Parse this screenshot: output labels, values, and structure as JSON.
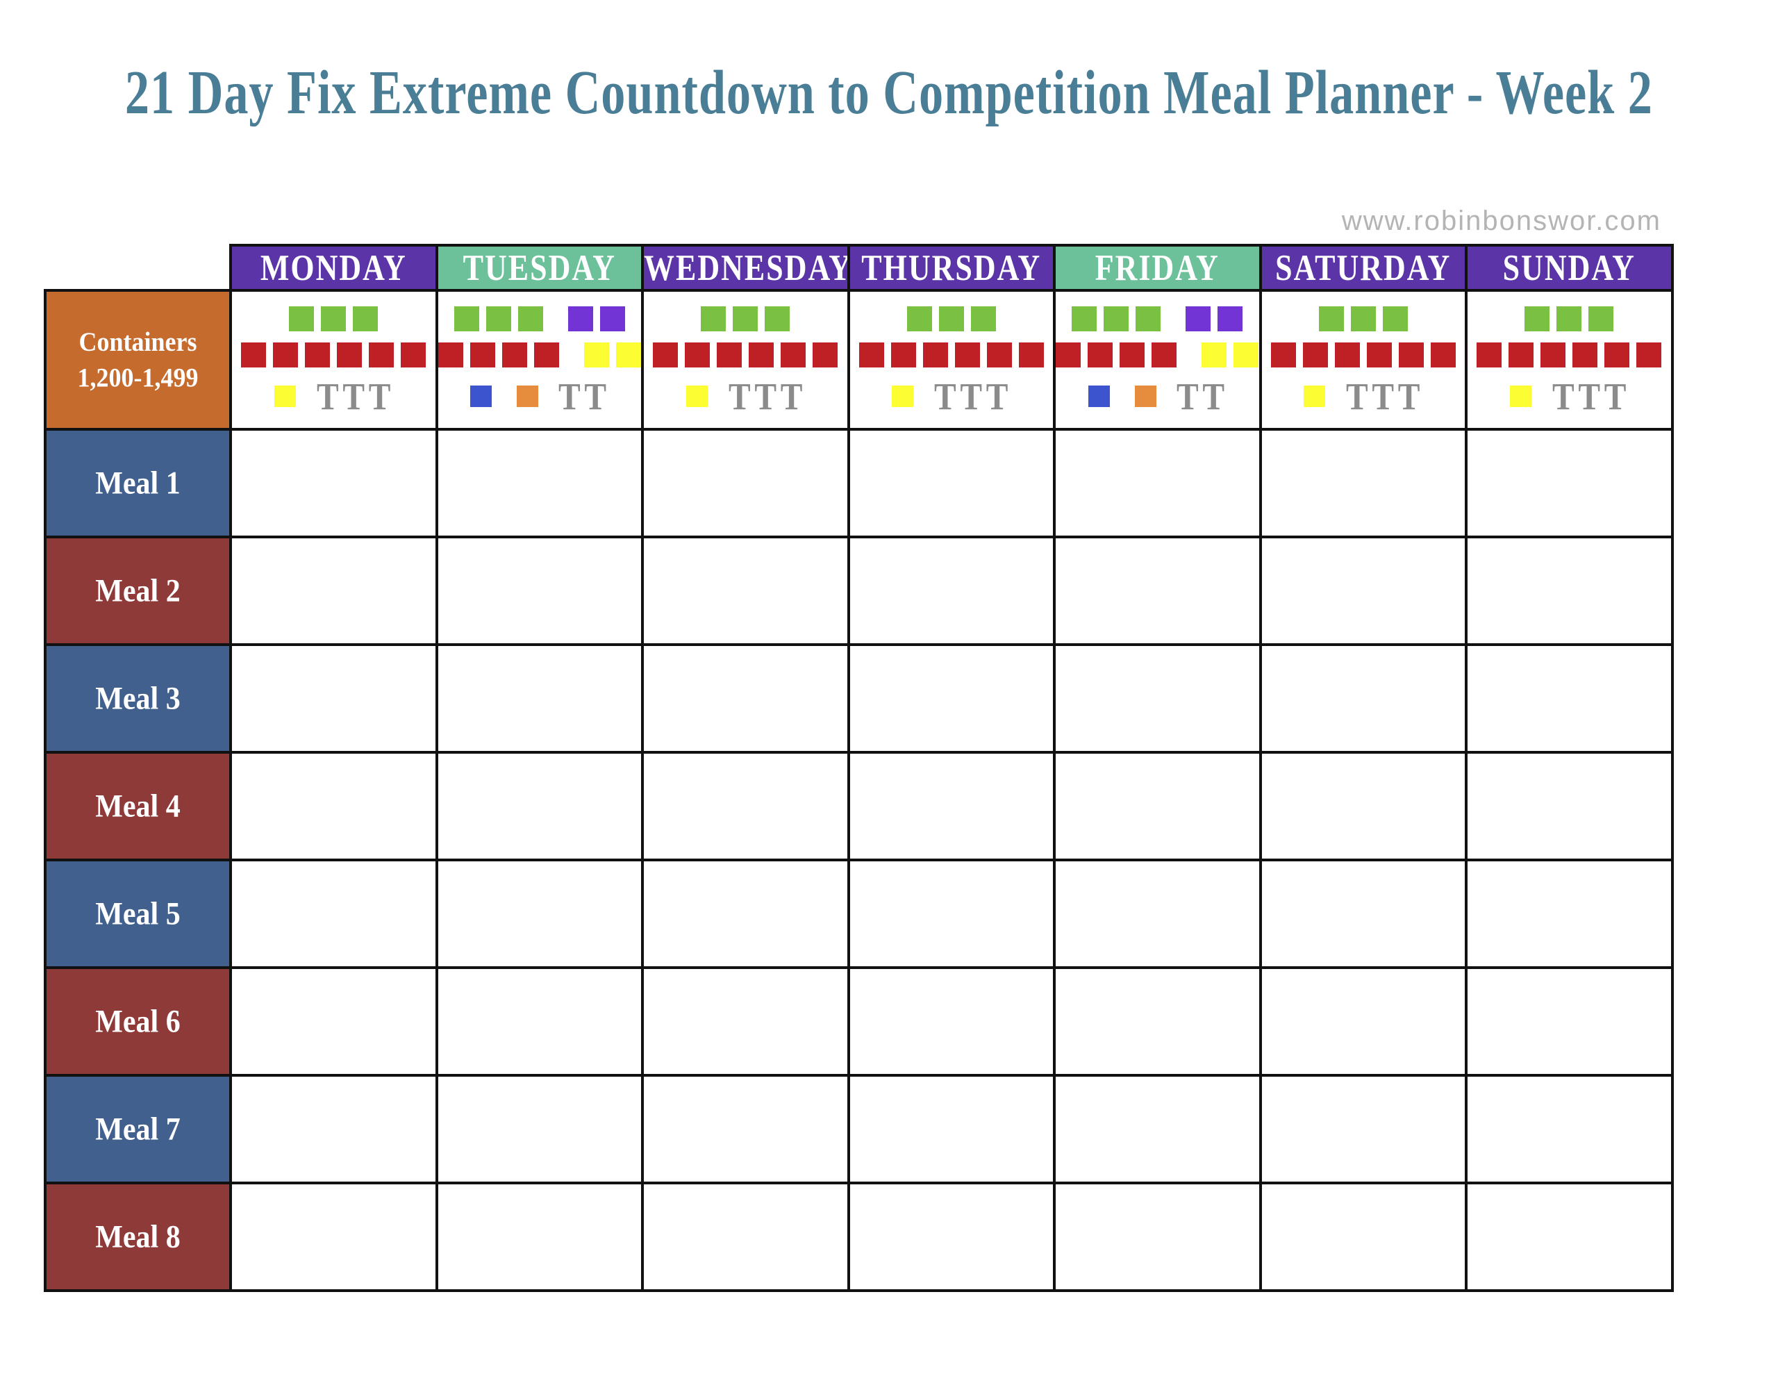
{
  "page": {
    "title": "21 Day Fix Extreme Countdown to Competition Meal Planner - Week 2",
    "website": "www.robinbonswor.com"
  },
  "colors": {
    "title_text": "#4a7e96",
    "url_gray": "#b4b4b4",
    "grid_black": "#111111",
    "header_purple": "#5b34a8",
    "header_green": "#6cc19b",
    "containers_orange": "#c56b2e",
    "meal_blue": "#41608d",
    "meal_red": "#8e3a39",
    "square_green": "#7ac143",
    "square_purple": "#7334d6",
    "square_red": "#bf2026",
    "square_yellow": "#fdfd33",
    "square_blue": "#3c55cf",
    "square_orange": "#e58d3c",
    "tsp_gray": "#8b8b8b"
  },
  "table": {
    "containers_label": {
      "line1": "Containers",
      "line2": "1,200-1,499"
    },
    "meals": [
      "Meal 1",
      "Meal 2",
      "Meal 3",
      "Meal 4",
      "Meal 5",
      "Meal 6",
      "Meal 7",
      "Meal 8"
    ],
    "days": [
      {
        "name": "MONDAY",
        "header_color": "purple",
        "lines": [
          {
            "groups": [
              {
                "color": "green",
                "count": 3
              }
            ]
          },
          {
            "groups": [
              {
                "color": "red",
                "count": 6
              }
            ]
          },
          {
            "groups": [
              {
                "color": "yellow",
                "count": 1
              }
            ],
            "tsp": "TTT"
          }
        ]
      },
      {
        "name": "TUESDAY",
        "header_color": "green",
        "lines": [
          {
            "groups": [
              {
                "color": "green",
                "count": 3
              },
              {
                "color": "purple",
                "count": 2
              }
            ]
          },
          {
            "groups": [
              {
                "color": "red",
                "count": 4
              },
              {
                "color": "yellow",
                "count": 2
              }
            ]
          },
          {
            "groups": [
              {
                "color": "blue",
                "count": 1
              },
              {
                "color": "orange",
                "count": 1
              }
            ],
            "tsp": "TT"
          }
        ]
      },
      {
        "name": "WEDNESDAY",
        "header_color": "purple",
        "lines": [
          {
            "groups": [
              {
                "color": "green",
                "count": 3
              }
            ]
          },
          {
            "groups": [
              {
                "color": "red",
                "count": 6
              }
            ]
          },
          {
            "groups": [
              {
                "color": "yellow",
                "count": 1
              }
            ],
            "tsp": "TTT"
          }
        ]
      },
      {
        "name": "THURSDAY",
        "header_color": "purple",
        "lines": [
          {
            "groups": [
              {
                "color": "green",
                "count": 3
              }
            ]
          },
          {
            "groups": [
              {
                "color": "red",
                "count": 6
              }
            ]
          },
          {
            "groups": [
              {
                "color": "yellow",
                "count": 1
              }
            ],
            "tsp": "TTT"
          }
        ]
      },
      {
        "name": "FRIDAY",
        "header_color": "green",
        "lines": [
          {
            "groups": [
              {
                "color": "green",
                "count": 3
              },
              {
                "color": "purple",
                "count": 2
              }
            ]
          },
          {
            "groups": [
              {
                "color": "red",
                "count": 4
              },
              {
                "color": "yellow",
                "count": 2
              }
            ]
          },
          {
            "groups": [
              {
                "color": "blue",
                "count": 1
              },
              {
                "color": "orange",
                "count": 1
              }
            ],
            "tsp": "TT"
          }
        ]
      },
      {
        "name": "SATURDAY",
        "header_color": "purple",
        "lines": [
          {
            "groups": [
              {
                "color": "green",
                "count": 3
              }
            ]
          },
          {
            "groups": [
              {
                "color": "red",
                "count": 6
              }
            ]
          },
          {
            "groups": [
              {
                "color": "yellow",
                "count": 1
              }
            ],
            "tsp": "TTT"
          }
        ]
      },
      {
        "name": "SUNDAY",
        "header_color": "purple",
        "lines": [
          {
            "groups": [
              {
                "color": "green",
                "count": 3
              }
            ]
          },
          {
            "groups": [
              {
                "color": "red",
                "count": 6
              }
            ]
          },
          {
            "groups": [
              {
                "color": "yellow",
                "count": 1
              }
            ],
            "tsp": "TTT"
          }
        ]
      }
    ]
  }
}
